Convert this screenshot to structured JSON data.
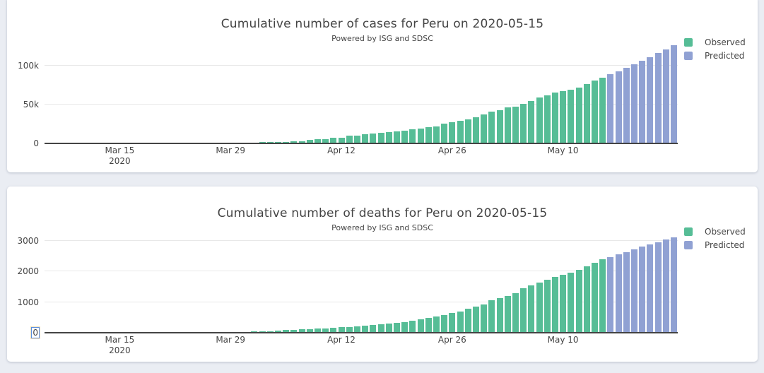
{
  "page": {
    "background": "#eaedf3",
    "panel_background": "#ffffff"
  },
  "chart_data": [
    {
      "type": "bar",
      "title": "Cumulative number of cases for Peru on 2020-05-15",
      "subtitle": "Powered by ISG and SDSC",
      "xlabel": "",
      "ylabel": "",
      "x_start_date": "2020-03-06",
      "x_frequency": "daily",
      "grid": true,
      "legend_position": "right-top",
      "ylim": [
        0,
        127000
      ],
      "yticks": [
        {
          "value": 0,
          "label": "0"
        },
        {
          "value": 50000,
          "label": "50k"
        },
        {
          "value": 100000,
          "label": "100k"
        }
      ],
      "xticks": [
        {
          "day_index": 9,
          "lines": [
            "Mar 15",
            "2020"
          ]
        },
        {
          "day_index": 23,
          "lines": [
            "Mar 29"
          ]
        },
        {
          "day_index": 37,
          "lines": [
            "Apr 12"
          ]
        },
        {
          "day_index": 51,
          "lines": [
            "Apr 26"
          ]
        },
        {
          "day_index": 65,
          "lines": [
            "May 10"
          ]
        }
      ],
      "series": [
        {
          "name": "Observed",
          "color": "#56bd96",
          "values": [
            1,
            1,
            6,
            9,
            11,
            13,
            17,
            28,
            38,
            43,
            86,
            117,
            145,
            234,
            234,
            318,
            363,
            395,
            416,
            480,
            580,
            635,
            671,
            852,
            950,
            1065,
            1323,
            1414,
            1595,
            1746,
            2281,
            2561,
            2954,
            4342,
            5256,
            5897,
            6848,
            7519,
            9784,
            10303,
            11475,
            12491,
            13489,
            14420,
            15628,
            16325,
            17837,
            19250,
            20914,
            21648,
            25331,
            27517,
            28699,
            31190,
            33931,
            36976,
            40459,
            42534,
            45928,
            47372,
            51189,
            54817,
            58526,
            61847,
            65015,
            67307,
            68822,
            72059,
            76306,
            80604,
            84495
          ]
        },
        {
          "name": "Predicted",
          "color": "#90a1d3",
          "values": [
            88600,
            92700,
            96900,
            101300,
            105900,
            110700,
            115700,
            120900,
            126200
          ]
        }
      ]
    },
    {
      "type": "bar",
      "title": "Cumulative number of deaths for Peru on 2020-05-15",
      "subtitle": "Powered by ISG and SDSC",
      "xlabel": "",
      "ylabel": "",
      "x_start_date": "2020-03-06",
      "x_frequency": "daily",
      "grid": true,
      "legend_position": "right-top",
      "ylim": [
        0,
        3220
      ],
      "yticks": [
        {
          "value": 0,
          "label": "0",
          "selected": true
        },
        {
          "value": 1000,
          "label": "1000"
        },
        {
          "value": 2000,
          "label": "2000"
        },
        {
          "value": 3000,
          "label": "3000"
        }
      ],
      "xticks": [
        {
          "day_index": 9,
          "lines": [
            "Mar 15",
            "2020"
          ]
        },
        {
          "day_index": 23,
          "lines": [
            "Mar 29"
          ]
        },
        {
          "day_index": 37,
          "lines": [
            "Apr 12"
          ]
        },
        {
          "day_index": 51,
          "lines": [
            "Apr 26"
          ]
        },
        {
          "day_index": 65,
          "lines": [
            "May 10"
          ]
        }
      ],
      "series": [
        {
          "name": "Observed",
          "color": "#56bd96",
          "values": [
            0,
            0,
            0,
            0,
            0,
            0,
            0,
            0,
            0,
            0,
            0,
            0,
            0,
            3,
            3,
            5,
            5,
            5,
            7,
            9,
            9,
            11,
            16,
            18,
            24,
            30,
            38,
            47,
            55,
            61,
            83,
            92,
            107,
            121,
            138,
            148,
            169,
            181,
            193,
            216,
            230,
            254,
            274,
            300,
            326,
            348,
            400,
            445,
            484,
            530,
            572,
            634,
            700,
            782,
            854,
            925,
            1051,
            1124,
            1200,
            1286,
            1444,
            1533,
            1627,
            1714,
            1814,
            1889,
            1961,
            2057,
            2169,
            2267,
            2392
          ]
        },
        {
          "name": "Predicted",
          "color": "#90a1d3",
          "values": [
            2470,
            2550,
            2630,
            2715,
            2795,
            2875,
            2955,
            3035,
            3110
          ]
        }
      ]
    }
  ]
}
